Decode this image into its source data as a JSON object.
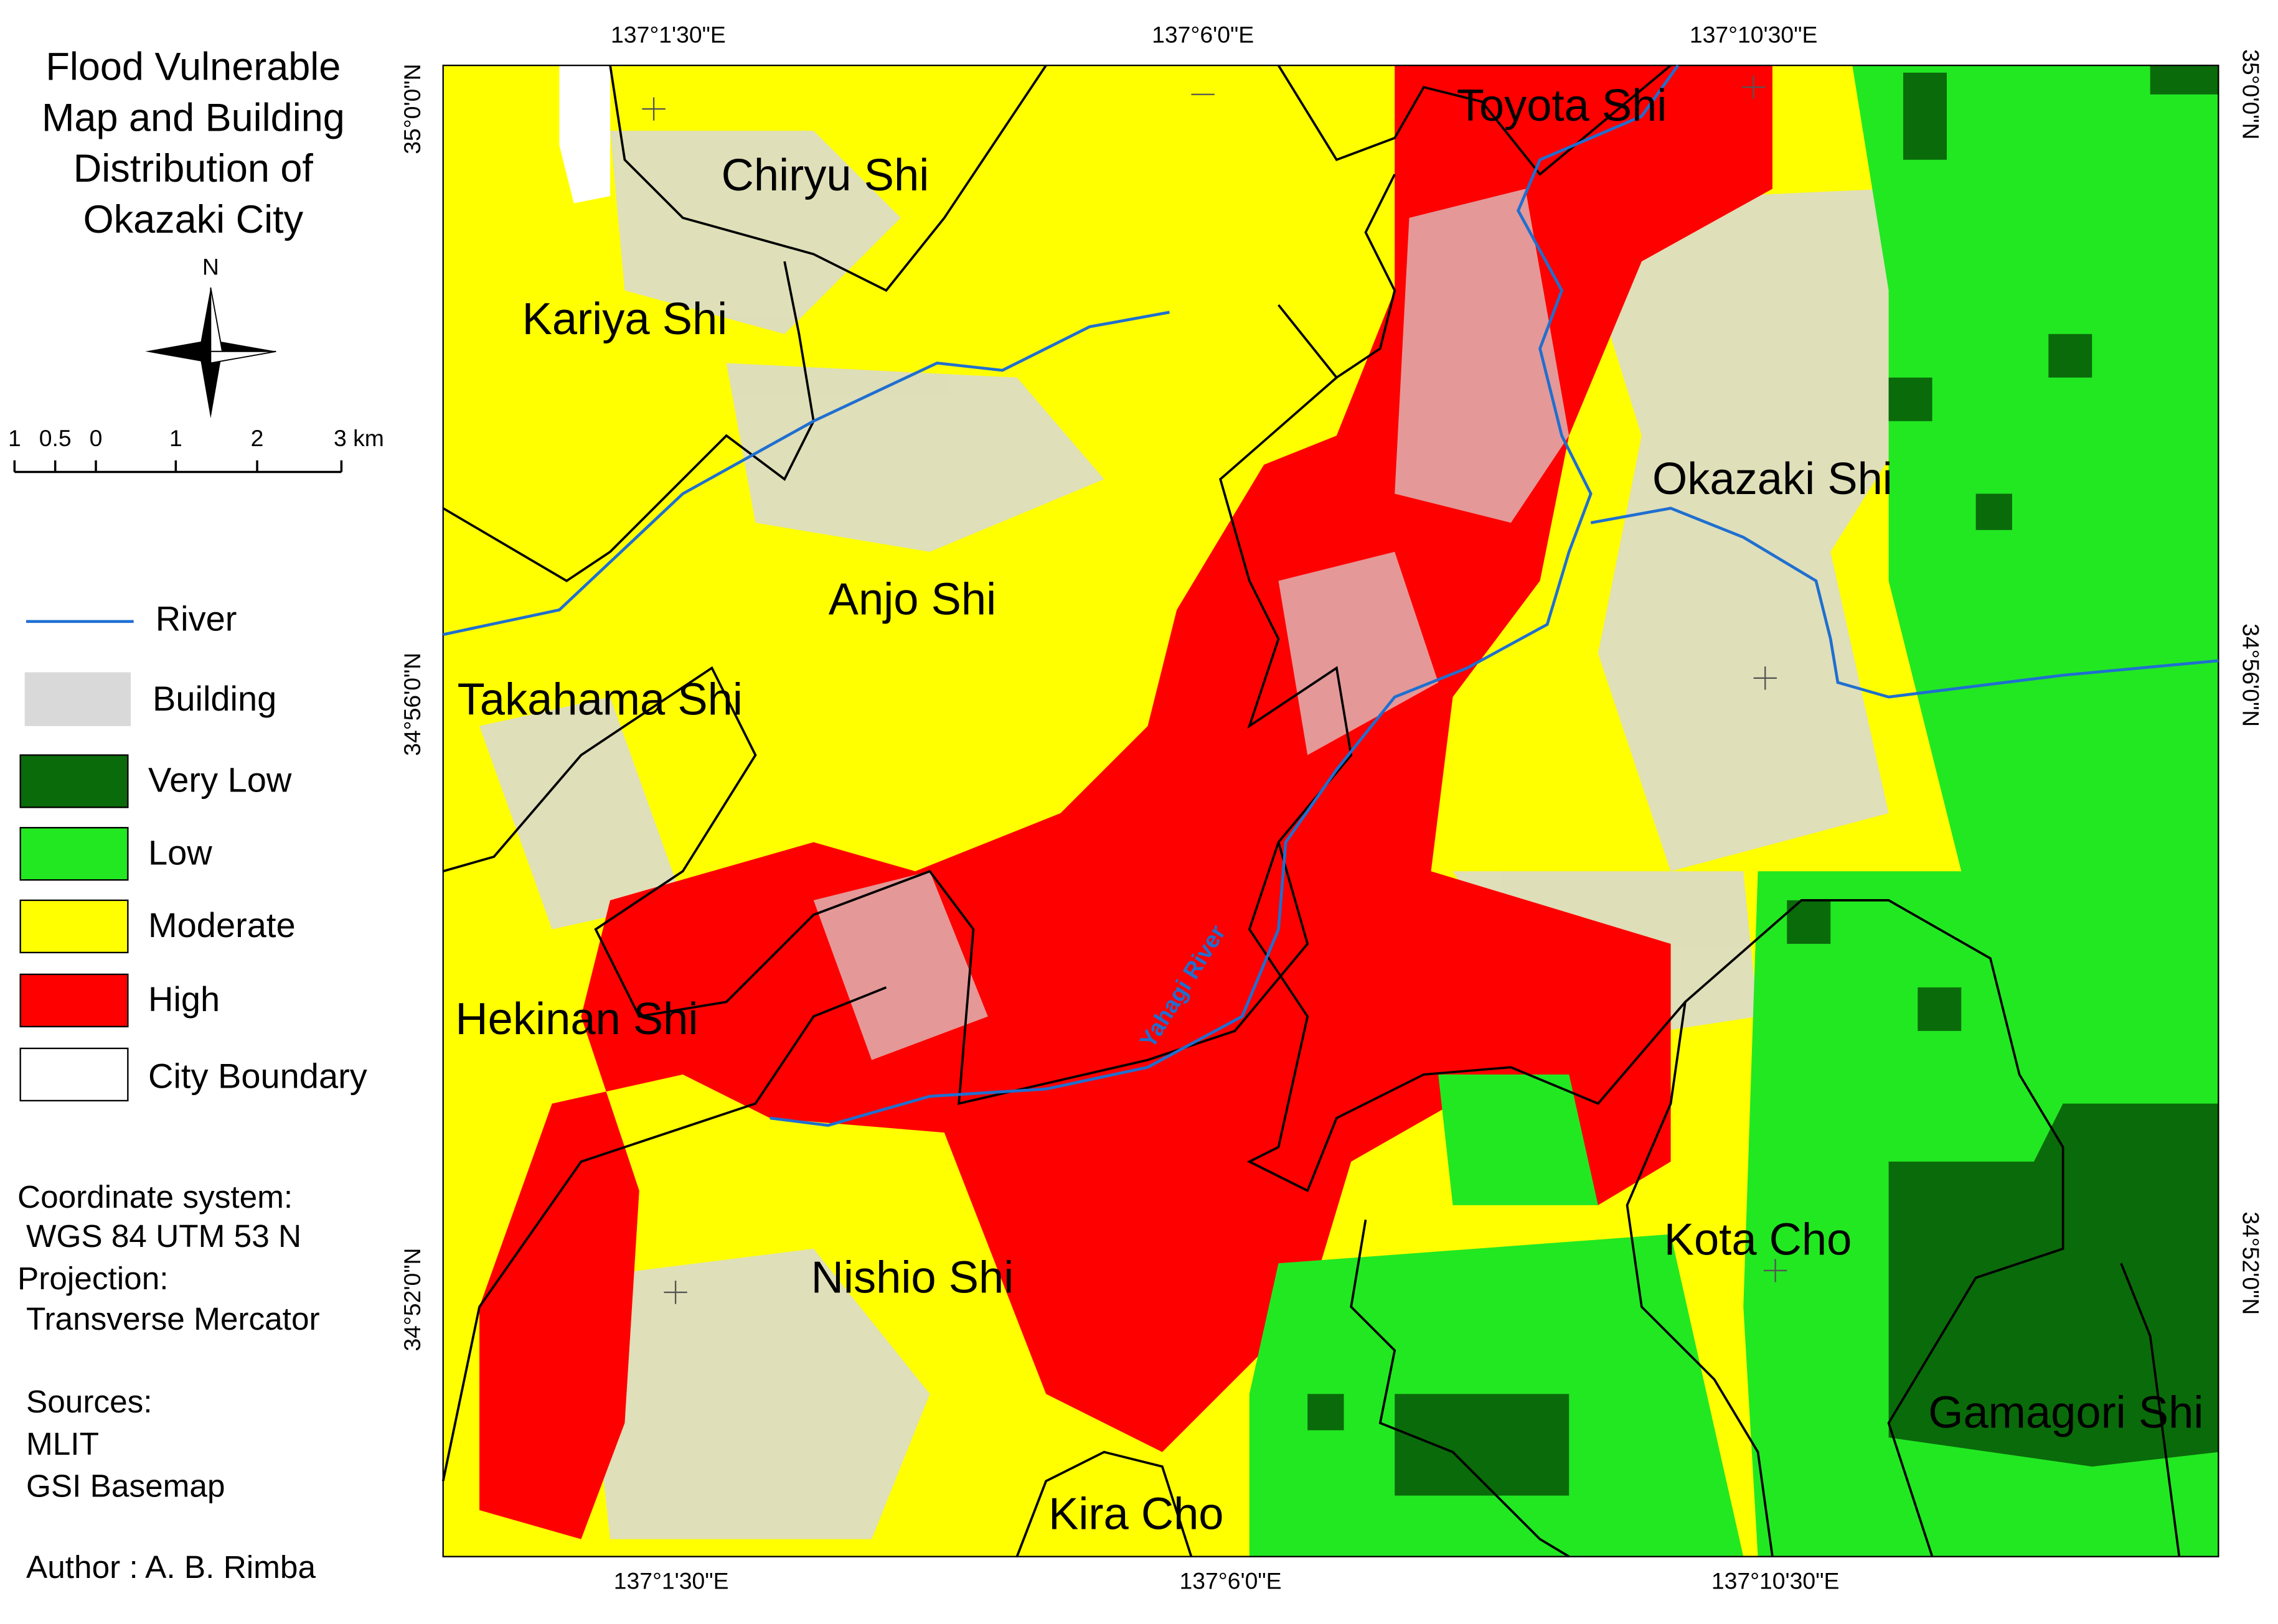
{
  "title_lines": [
    "Flood Vulnerable",
    "Map and Building",
    "Distribution of",
    "Okazaki City"
  ],
  "north": "N",
  "scale_bar": [
    "1",
    "0.5",
    "0",
    "1",
    "2",
    "3 km"
  ],
  "legend": [
    "River",
    "Building",
    "Very Low",
    "Low",
    "Moderate",
    "High",
    "City Boundary"
  ],
  "axes": {
    "top": [
      "137°1'30\"E",
      "137°6'0\"E",
      "137°10'30\"E"
    ],
    "bottom": [
      "137°1'30\"E",
      "137°6'0\"E",
      "137°10'30\"E"
    ],
    "left": [
      "35°0'0\"N",
      "34°56'0\"N",
      "34°52'0\"N"
    ],
    "right": [
      "35°0'0\"N",
      "34°56'0\"N",
      "34°52'0\"N"
    ]
  },
  "places": [
    "Toyota Shi",
    "Chiryu Shi",
    "Kariya Shi",
    "Okazaki Shi",
    "Anjo Shi",
    "Takahama Shi",
    "Hekinan Shi",
    "Nishio Shi",
    "Kota Cho",
    "Gamagori Shi",
    "Kira Cho"
  ],
  "river_label": "Yahagi River",
  "notes": [
    "Coordinate system:",
    "WGS 84 UTM 53 N",
    "Projection:",
    "Transverse Mercator",
    "Sources:",
    "MLIT",
    "GSI Basemap",
    "Author : A. B. Rimba"
  ]
}
